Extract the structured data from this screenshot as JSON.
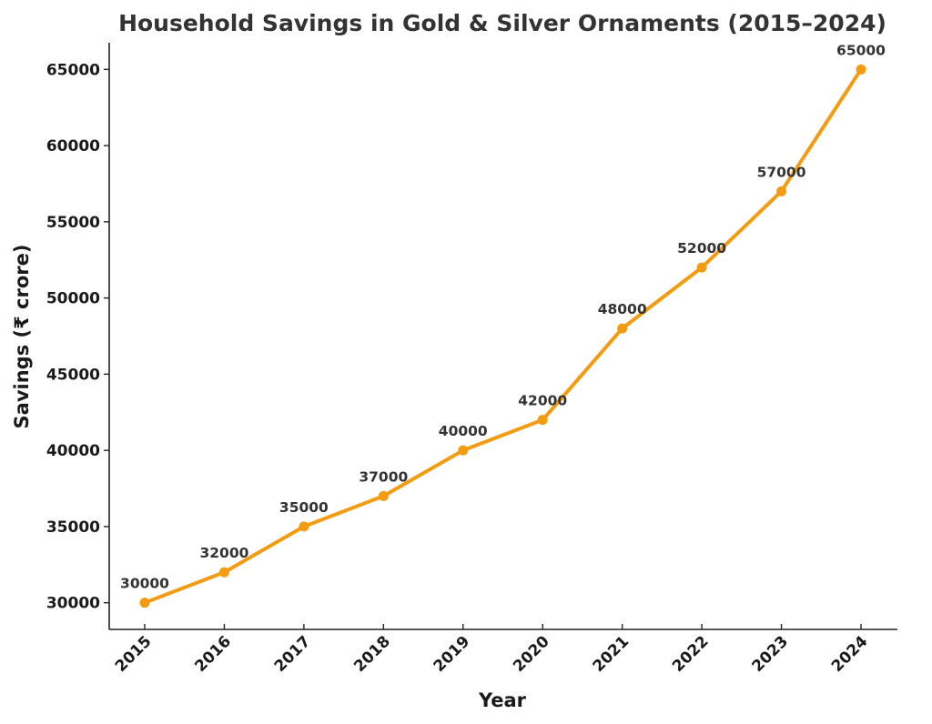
{
  "chart_data": {
    "type": "line",
    "title": "Household Savings in Gold & Silver Ornaments (2015–2024)",
    "xlabel": "Year",
    "ylabel": "Savings (₹ crore)",
    "categories": [
      "2015",
      "2016",
      "2017",
      "2018",
      "2019",
      "2020",
      "2021",
      "2022",
      "2023",
      "2024"
    ],
    "series": [
      {
        "name": "Savings",
        "values": [
          30000,
          32000,
          35000,
          37000,
          40000,
          42000,
          48000,
          52000,
          57000,
          65000
        ],
        "color": "#f39c12",
        "marker": "circle"
      }
    ],
    "data_labels": [
      "30000",
      "32000",
      "35000",
      "37000",
      "40000",
      "42000",
      "48000",
      "52000",
      "57000",
      "65000"
    ],
    "yticks": [
      30000,
      35000,
      40000,
      45000,
      50000,
      55000,
      60000,
      65000
    ],
    "ytick_labels": [
      "30000",
      "35000",
      "40000",
      "45000",
      "50000",
      "55000",
      "60000",
      "65000"
    ],
    "ylim": [
      28250,
      66750
    ],
    "xtick_rotation_deg": 45,
    "grid": false,
    "spines": "left-bottom",
    "legend": "none"
  }
}
